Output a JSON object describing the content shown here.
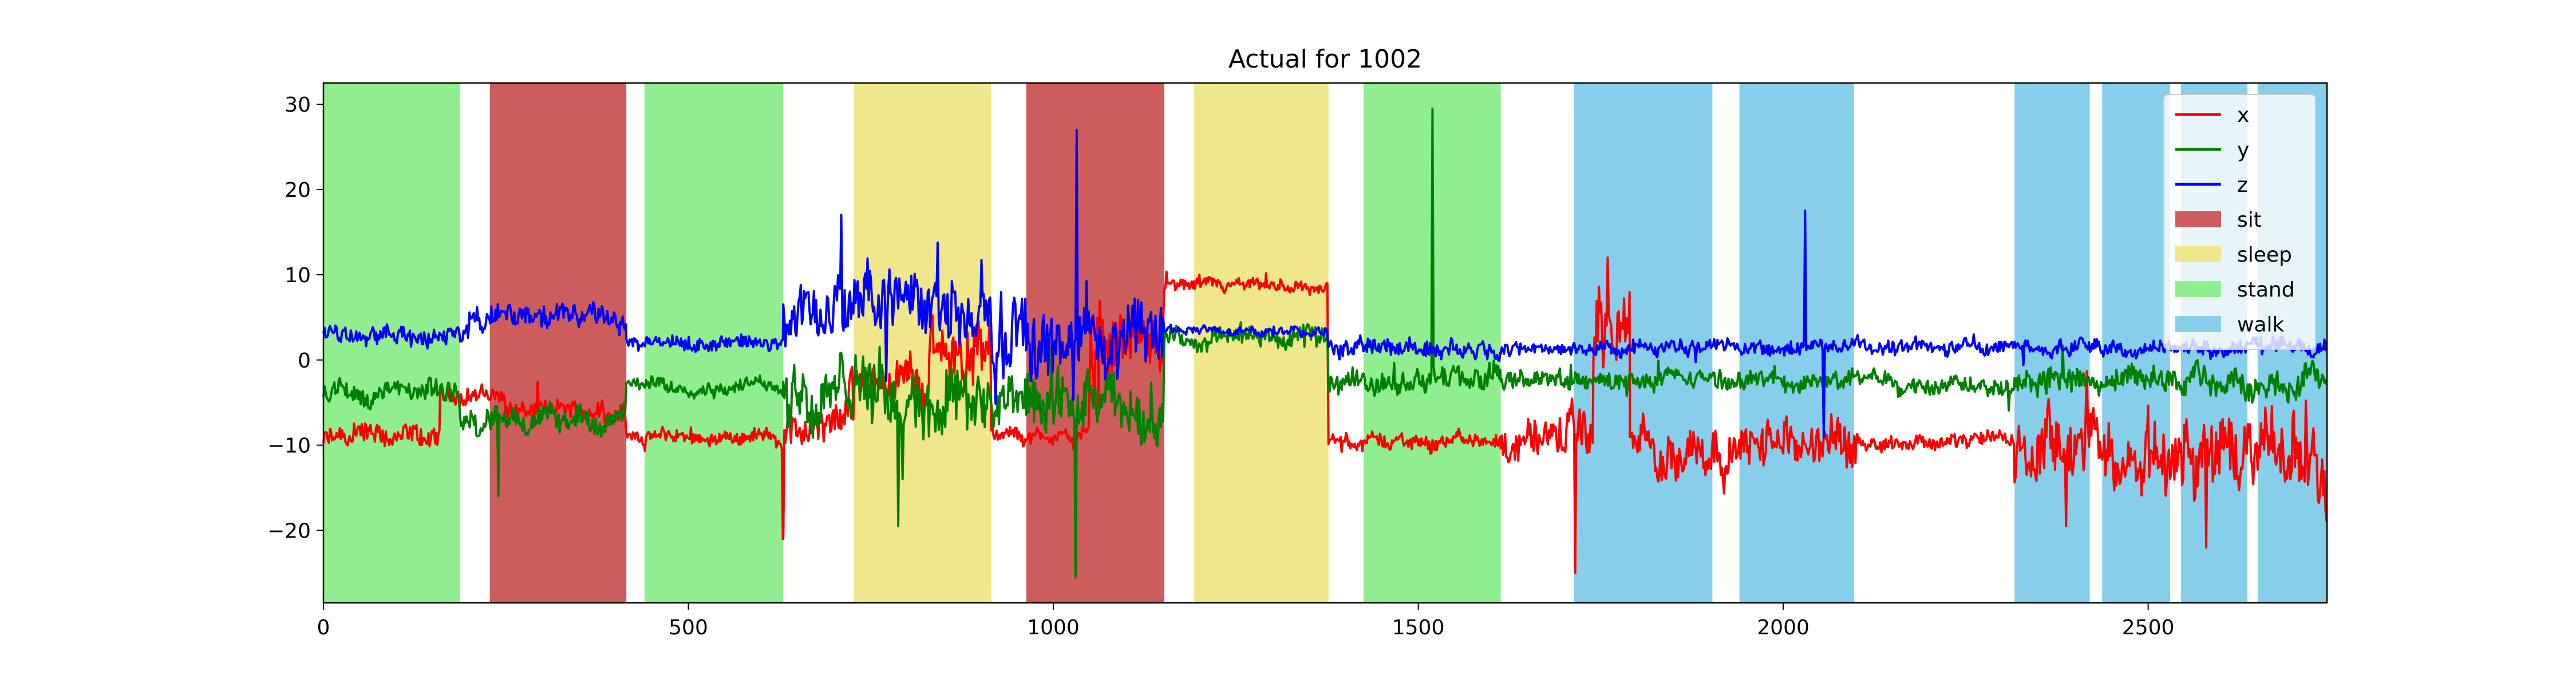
{
  "chart_data": {
    "type": "line",
    "title": "Actual for 1002",
    "xlabel": "",
    "ylabel": "",
    "xlim": [
      0,
      2745
    ],
    "ylim": [
      -28.5,
      32.5
    ],
    "xticks": [
      0,
      500,
      1000,
      1500,
      2000,
      2500
    ],
    "yticks": [
      -20,
      -10,
      0,
      10,
      20,
      30
    ],
    "grid": false,
    "legend_placement": "upper right",
    "activity_colors": {
      "sit": "#cd5c5c",
      "sleep": "#f0e68c",
      "stand": "#90ee90",
      "walk": "#87ceeb"
    },
    "activity_spans": [
      {
        "activity": "stand",
        "start": 0,
        "end": 187
      },
      {
        "activity": "sit",
        "start": 228,
        "end": 415
      },
      {
        "activity": "stand",
        "start": 440,
        "end": 630
      },
      {
        "activity": "sleep",
        "start": 727,
        "end": 915
      },
      {
        "activity": "sit",
        "start": 963,
        "end": 1152
      },
      {
        "activity": "sleep",
        "start": 1193,
        "end": 1377
      },
      {
        "activity": "stand",
        "start": 1425,
        "end": 1613
      },
      {
        "activity": "walk",
        "start": 1713,
        "end": 1903
      },
      {
        "activity": "walk",
        "start": 1940,
        "end": 2097
      },
      {
        "activity": "walk",
        "start": 2317,
        "end": 2420
      },
      {
        "activity": "walk",
        "start": 2437,
        "end": 2530
      },
      {
        "activity": "walk",
        "start": 2545,
        "end": 2636
      },
      {
        "activity": "walk",
        "start": 2650,
        "end": 2745
      }
    ],
    "series": [
      {
        "name": "x",
        "color": "#ff0000",
        "segments": [
          {
            "start": 0,
            "end": 160,
            "mean": -9.5,
            "noise": 1.5
          },
          {
            "start": 160,
            "end": 250,
            "mean": -4.0,
            "noise": 1.2
          },
          {
            "start": 250,
            "end": 415,
            "mean": -6.0,
            "noise": 1.2
          },
          {
            "start": 415,
            "end": 630,
            "mean": -9.0,
            "noise": 0.9
          },
          {
            "start": 630,
            "end": 720,
            "mean": -8.5,
            "noise": 2.5
          },
          {
            "start": 720,
            "end": 830,
            "mean": -2.5,
            "noise": 2.5
          },
          {
            "start": 830,
            "end": 915,
            "mean": 1.0,
            "noise": 4.0
          },
          {
            "start": 915,
            "end": 1050,
            "mean": -9.0,
            "noise": 1.0
          },
          {
            "start": 1050,
            "end": 1152,
            "mean": 2.0,
            "noise": 4.5
          },
          {
            "start": 1152,
            "end": 1377,
            "mean": 8.5,
            "noise": 0.8
          },
          {
            "start": 1377,
            "end": 1613,
            "mean": -9.5,
            "noise": 1.0
          },
          {
            "start": 1613,
            "end": 1740,
            "mean": -9.0,
            "noise": 3.0
          },
          {
            "start": 1740,
            "end": 1790,
            "mean": 3.0,
            "noise": 5.0
          },
          {
            "start": 1790,
            "end": 2100,
            "mean": -10.0,
            "noise": 3.0
          },
          {
            "start": 2100,
            "end": 2317,
            "mean": -9.5,
            "noise": 1.0
          },
          {
            "start": 2317,
            "end": 2745,
            "mean": -11.0,
            "noise": 4.5
          }
        ]
      },
      {
        "name": "y",
        "color": "#008000",
        "segments": [
          {
            "start": 0,
            "end": 187,
            "mean": -4.0,
            "noise": 1.5
          },
          {
            "start": 187,
            "end": 415,
            "mean": -7.0,
            "noise": 1.5
          },
          {
            "start": 415,
            "end": 630,
            "mean": -3.0,
            "noise": 0.9
          },
          {
            "start": 630,
            "end": 915,
            "mean": -4.0,
            "noise": 4.5
          },
          {
            "start": 915,
            "end": 1152,
            "mean": -6.0,
            "noise": 3.5
          },
          {
            "start": 1152,
            "end": 1377,
            "mean": 2.5,
            "noise": 1.2
          },
          {
            "start": 1377,
            "end": 1613,
            "mean": -2.5,
            "noise": 1.5
          },
          {
            "start": 1613,
            "end": 2317,
            "mean": -2.5,
            "noise": 1.2
          },
          {
            "start": 2317,
            "end": 2745,
            "mean": -2.5,
            "noise": 1.8
          }
        ]
      },
      {
        "name": "z",
        "color": "#0000ff",
        "segments": [
          {
            "start": 0,
            "end": 200,
            "mean": 3.0,
            "noise": 1.3
          },
          {
            "start": 200,
            "end": 415,
            "mean": 5.0,
            "noise": 1.5
          },
          {
            "start": 415,
            "end": 630,
            "mean": 2.0,
            "noise": 0.9
          },
          {
            "start": 630,
            "end": 915,
            "mean": 6.0,
            "noise": 4.0
          },
          {
            "start": 915,
            "end": 1152,
            "mean": 2.0,
            "noise": 4.5
          },
          {
            "start": 1152,
            "end": 1377,
            "mean": 3.5,
            "noise": 0.6
          },
          {
            "start": 1377,
            "end": 1613,
            "mean": 1.5,
            "noise": 1.2
          },
          {
            "start": 1613,
            "end": 2317,
            "mean": 1.5,
            "noise": 0.9
          },
          {
            "start": 2317,
            "end": 2745,
            "mean": 1.5,
            "noise": 1.0
          }
        ]
      }
    ],
    "spikes": [
      {
        "series": "x",
        "x": 630,
        "y": -21
      },
      {
        "series": "x",
        "x": 1715,
        "y": -25
      },
      {
        "series": "x",
        "x": 2580,
        "y": -22
      },
      {
        "series": "x",
        "x": 1760,
        "y": 12
      },
      {
        "series": "x",
        "x": 1200,
        "y": 10
      },
      {
        "series": "y",
        "x": 1520,
        "y": 29.5
      },
      {
        "series": "y",
        "x": 1030,
        "y": -25.5
      },
      {
        "series": "y",
        "x": 787,
        "y": -19.5
      },
      {
        "series": "y",
        "x": 240,
        "y": -16
      },
      {
        "series": "z",
        "x": 1032,
        "y": 27
      },
      {
        "series": "z",
        "x": 710,
        "y": 17
      },
      {
        "series": "z",
        "x": 2030,
        "y": 17.5
      },
      {
        "series": "z",
        "x": 2055,
        "y": -9
      }
    ],
    "legend": [
      {
        "label": "x",
        "kind": "line",
        "color": "#ff0000"
      },
      {
        "label": "y",
        "kind": "line",
        "color": "#008000"
      },
      {
        "label": "z",
        "kind": "line",
        "color": "#0000ff"
      },
      {
        "label": "sit",
        "kind": "patch",
        "color": "#cd5c5c"
      },
      {
        "label": "sleep",
        "kind": "patch",
        "color": "#f0e68c"
      },
      {
        "label": "stand",
        "kind": "patch",
        "color": "#90ee90"
      },
      {
        "label": "walk",
        "kind": "patch",
        "color": "#87ceeb"
      }
    ]
  }
}
